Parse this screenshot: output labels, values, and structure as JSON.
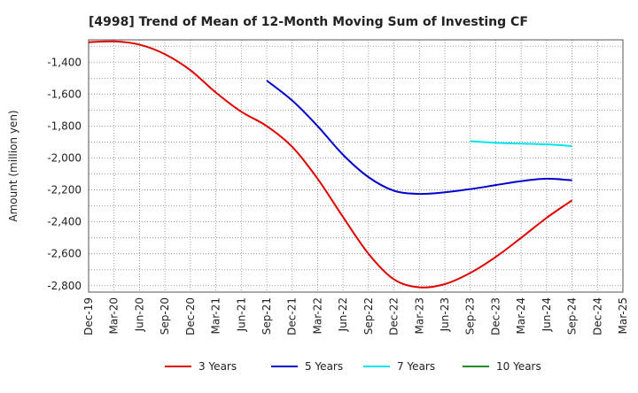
{
  "chart_data": {
    "type": "line",
    "title": "[4998]  Trend of Mean of 12-Month Moving Sum of Investing CF",
    "xlabel": "",
    "ylabel": "Amount (million yen)",
    "ylim": [
      -2840,
      -1260
    ],
    "yticks": [
      -2800,
      -2600,
      -2400,
      -2200,
      -2000,
      -1800,
      -1600,
      -1400
    ],
    "ytick_labels": [
      "-2,800",
      "-2,600",
      "-2,400",
      "-2,200",
      "-2,000",
      "-1,800",
      "-1,600",
      "-1,400"
    ],
    "categories": [
      "Dec-19",
      "Mar-20",
      "Jun-20",
      "Sep-20",
      "Dec-20",
      "Mar-21",
      "Jun-21",
      "Sep-21",
      "Dec-21",
      "Mar-22",
      "Jun-22",
      "Sep-22",
      "Dec-22",
      "Mar-23",
      "Jun-23",
      "Sep-23",
      "Dec-23",
      "Mar-24",
      "Jun-24",
      "Sep-24",
      "Dec-24",
      "Mar-25"
    ],
    "grid": true,
    "series": [
      {
        "name": "3 Years",
        "color": "#e00000",
        "values": [
          -1275,
          -1270,
          -1290,
          -1350,
          -1450,
          -1590,
          -1710,
          -1800,
          -1930,
          -2130,
          -2370,
          -2600,
          -2760,
          -2810,
          -2790,
          -2720,
          -2620,
          -2500,
          -2375,
          -2265,
          null,
          null
        ]
      },
      {
        "name": "5 Years",
        "color": "#0000cc",
        "values": [
          null,
          null,
          null,
          null,
          null,
          null,
          null,
          -1515,
          -1640,
          -1800,
          -1980,
          -2120,
          -2205,
          -2225,
          -2215,
          -2195,
          -2170,
          -2145,
          -2130,
          -2140,
          null,
          null
        ]
      },
      {
        "name": "7 Years",
        "color": "#00e5ee",
        "values": [
          null,
          null,
          null,
          null,
          null,
          null,
          null,
          null,
          null,
          null,
          null,
          null,
          null,
          null,
          null,
          -1895,
          -1905,
          -1910,
          -1915,
          -1925,
          null,
          null
        ]
      },
      {
        "name": "10 Years",
        "color": "#228b22",
        "values": [
          null,
          null,
          null,
          null,
          null,
          null,
          null,
          null,
          null,
          null,
          null,
          null,
          null,
          null,
          null,
          null,
          null,
          null,
          null,
          null,
          null,
          null
        ]
      }
    ]
  }
}
